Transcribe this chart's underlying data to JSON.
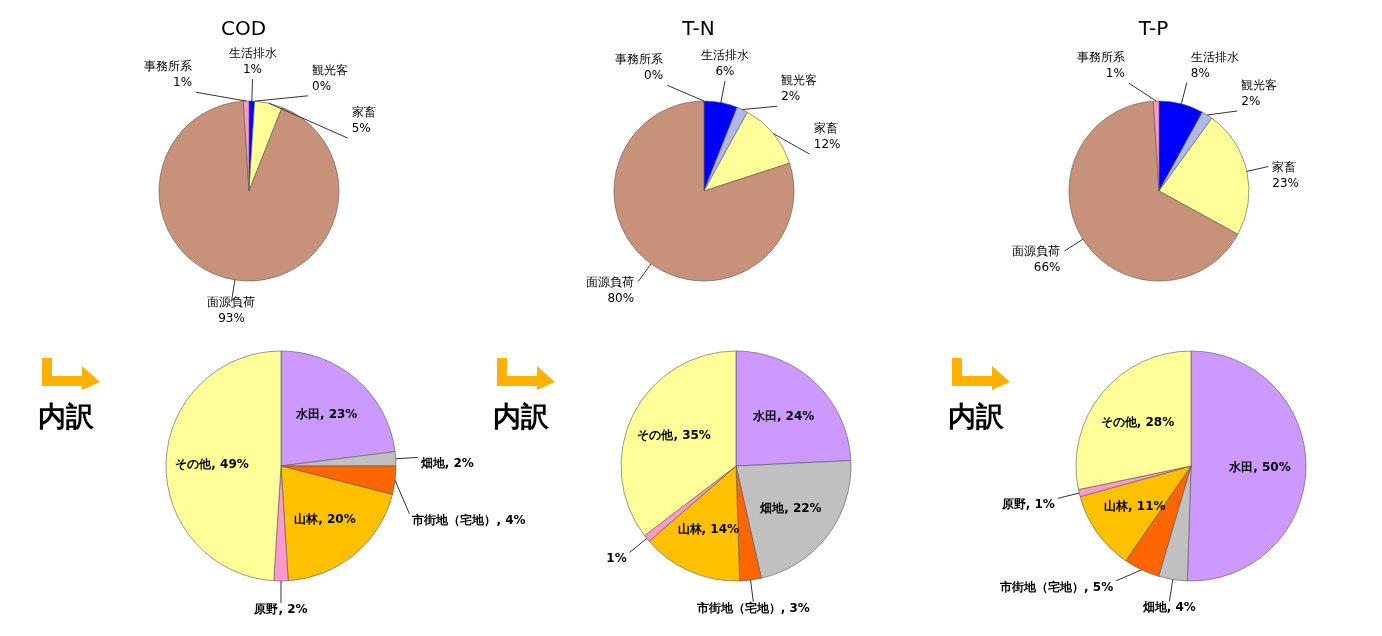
{
  "chart_data": [
    {
      "type": "pie",
      "title": "COD",
      "categories": [
        "生活排水",
        "観光客",
        "家畜",
        "面源負荷",
        "事務所系"
      ],
      "values": [
        1,
        0,
        5,
        93,
        1
      ],
      "value_labels": [
        "1%",
        "0%",
        "5%",
        "93%",
        "1%"
      ],
      "colors": [
        "#0000ff",
        "#b0b8e8",
        "#ffff99",
        "#c8917a",
        "#ff99cc"
      ]
    },
    {
      "type": "pie",
      "title": "内訳",
      "categories": [
        "水田",
        "畑地",
        "市街地（宅地）",
        "山林",
        "原野",
        "その他"
      ],
      "values": [
        23,
        2,
        4,
        20,
        2,
        49
      ],
      "value_labels": [
        "23%",
        "2%",
        "4%",
        "20%",
        "2%",
        "49%"
      ],
      "colors": [
        "#cc99ff",
        "#c0c0c0",
        "#ff6600",
        "#ffc000",
        "#ff99cc",
        "#ffff99"
      ]
    },
    {
      "type": "pie",
      "title": "T-N",
      "categories": [
        "生活排水",
        "観光客",
        "家畜",
        "面源負荷",
        "事務所系"
      ],
      "values": [
        6,
        2,
        12,
        80,
        0
      ],
      "value_labels": [
        "6%",
        "2%",
        "12%",
        "80%",
        "0%"
      ],
      "colors": [
        "#0000ff",
        "#b0b8e8",
        "#ffff99",
        "#c8917a",
        "#ff99cc"
      ]
    },
    {
      "type": "pie",
      "title": "内訳",
      "categories": [
        "水田",
        "畑地",
        "市街地（宅地）",
        "山林",
        null,
        "その他"
      ],
      "values": [
        24,
        22,
        3,
        14,
        1,
        35
      ],
      "value_labels": [
        "24%",
        "22%",
        "3%",
        "14%",
        "1%",
        "35%"
      ],
      "colors": [
        "#cc99ff",
        "#c0c0c0",
        "#ff6600",
        "#ffc000",
        "#ff99cc",
        "#ffff99"
      ]
    },
    {
      "type": "pie",
      "title": "T-P",
      "categories": [
        "生活排水",
        "観光客",
        "家畜",
        "面源負荷",
        "事務所系"
      ],
      "values": [
        8,
        2,
        23,
        66,
        1
      ],
      "value_labels": [
        "8%",
        "2%",
        "23%",
        "66%",
        "1%"
      ],
      "colors": [
        "#0000ff",
        "#b0b8e8",
        "#ffff99",
        "#c8917a",
        "#ff99cc"
      ]
    },
    {
      "type": "pie",
      "title": "内訳",
      "categories": [
        "水田",
        "畑地",
        "市街地（宅地）",
        "山林",
        "原野",
        "その他"
      ],
      "values": [
        50,
        4,
        5,
        11,
        1,
        28
      ],
      "value_labels": [
        "50%",
        "4%",
        "5%",
        "11%",
        "1%",
        "28%"
      ],
      "colors": [
        "#cc99ff",
        "#c0c0c0",
        "#ff6600",
        "#ffc000",
        "#ff99cc",
        "#ffff99"
      ]
    }
  ]
}
